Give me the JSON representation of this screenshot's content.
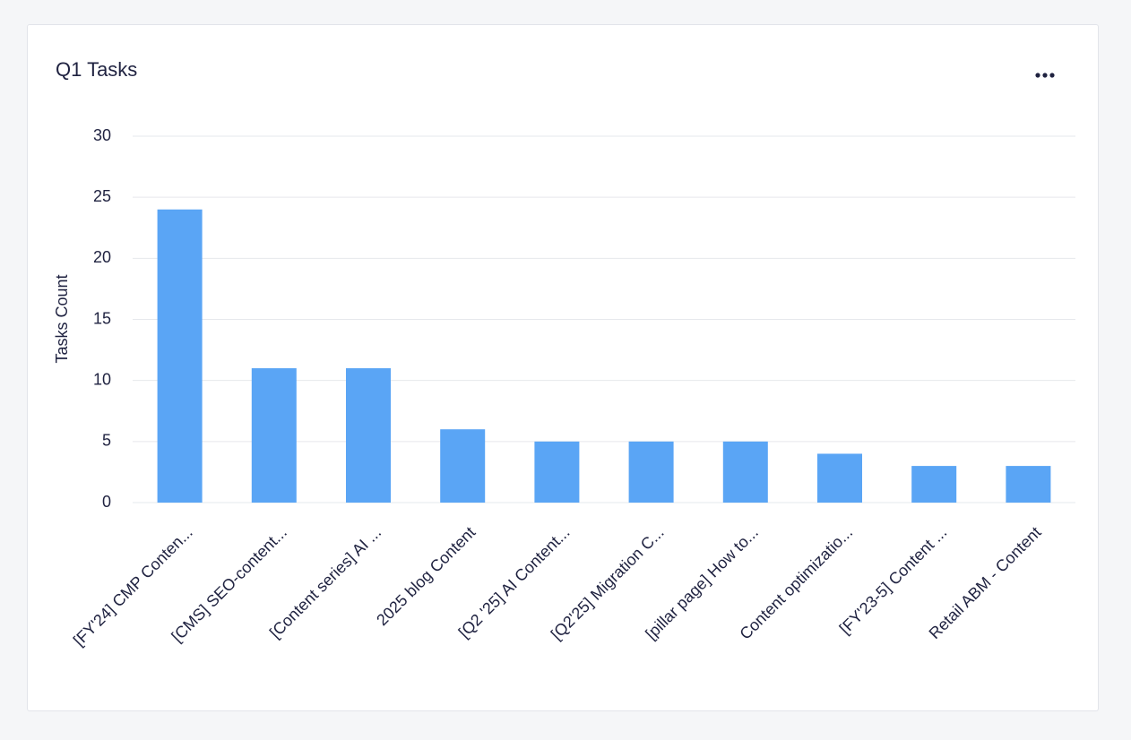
{
  "chart_data": {
    "type": "bar",
    "title": "Q1 Tasks",
    "y_label": "Tasks Count",
    "categories": [
      "[FY'24] CMP Conten...",
      "[CMS] SEO-content...",
      "[Content series] AI ...",
      "2025 blog Content",
      "[Q2 '25] AI Content...",
      "[Q2'25] Migration C...",
      "[pillar page] How to...",
      "Content optimizatio...",
      "[FY'23-5] Content ...",
      "Retail ABM - Content"
    ],
    "values": [
      24,
      11,
      11,
      6,
      5,
      5,
      5,
      4,
      3,
      3
    ],
    "color": "#5aa5f5",
    "ylim": [
      0,
      30
    ],
    "yticks": [
      0,
      5,
      10,
      15,
      20,
      25,
      30
    ],
    "grid": true
  }
}
